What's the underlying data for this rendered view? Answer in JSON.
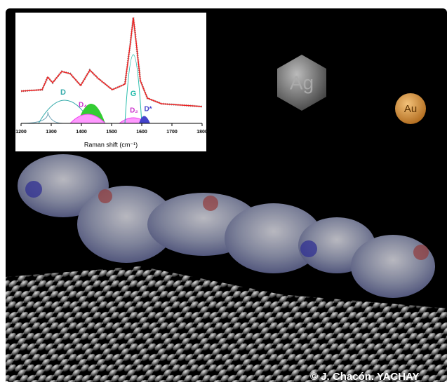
{
  "inset": {
    "x_label": "Raman shift (cm⁻¹)",
    "x_ticks": [
      1200,
      1300,
      1400,
      1500,
      1600,
      1700,
      1800
    ],
    "peak_labels": [
      "D",
      "D₄",
      "G",
      "D₂",
      "D*"
    ]
  },
  "labels": {
    "silver": "Ag",
    "gold": "Au"
  },
  "credit": "© J. Chacón. YACHAY"
}
